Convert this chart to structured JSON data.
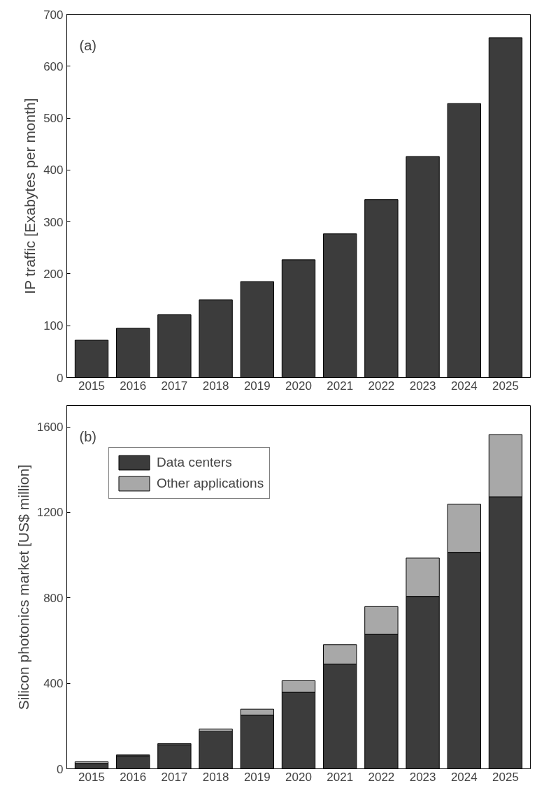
{
  "chart_data": [
    {
      "type": "bar",
      "ylabel": "IP traffic [Exabytes per month]",
      "annotations": [
        "(a)"
      ],
      "categories": [
        "2015",
        "2016",
        "2017",
        "2018",
        "2019",
        "2020",
        "2021",
        "2022",
        "2023",
        "2024",
        "2025"
      ],
      "series": [
        {
          "color": "#3c3c3c",
          "values": [
            72,
            95,
            121,
            150,
            185,
            227,
            277,
            343,
            426,
            528,
            655
          ]
        }
      ],
      "ylim": [
        0,
        700
      ],
      "yticks": [
        0,
        100,
        200,
        300,
        400,
        500,
        600,
        700
      ],
      "grid": false,
      "legend": false
    },
    {
      "type": "bar",
      "ylabel": "Silicon photonics market [US$ million]",
      "annotations": [
        "(b)"
      ],
      "categories": [
        "2015",
        "2016",
        "2017",
        "2018",
        "2019",
        "2020",
        "2021",
        "2022",
        "2023",
        "2024",
        "2025"
      ],
      "stacked": true,
      "series": [
        {
          "name": "Data centers",
          "color": "#3c3c3c",
          "values": [
            25,
            61,
            113,
            174,
            251,
            358,
            490,
            629,
            807,
            1013,
            1273
          ]
        },
        {
          "name": "Other applications",
          "color": "#a8a8a8",
          "values": [
            8,
            4,
            5,
            12,
            28,
            54,
            91,
            130,
            179,
            225,
            291
          ]
        }
      ],
      "ylim": [
        0,
        1700
      ],
      "yticks": [
        0,
        400,
        800,
        1200,
        1600
      ],
      "grid": false,
      "legend": "top left"
    }
  ]
}
